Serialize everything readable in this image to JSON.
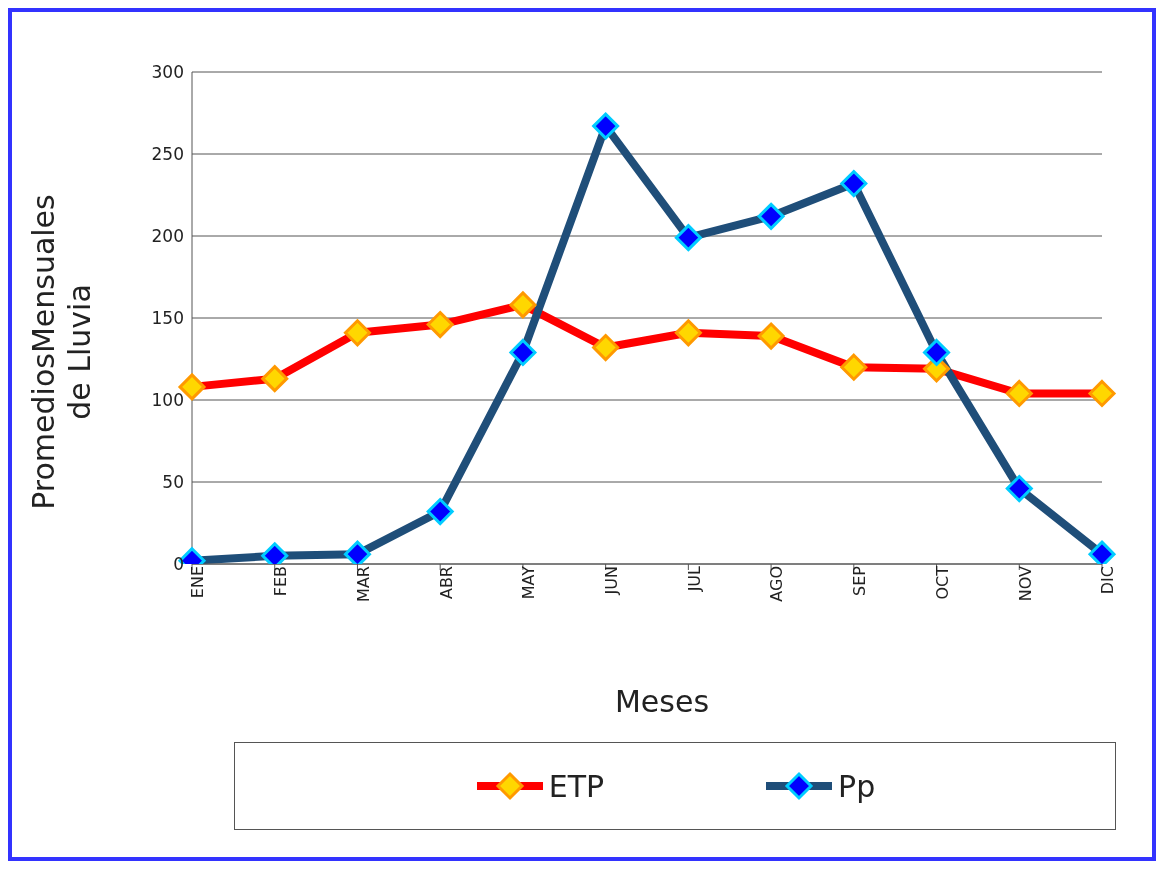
{
  "chart_data": {
    "type": "line",
    "xlabel": "Meses",
    "ylabel": "PromediosMensuales de Lluvia",
    "categories": [
      "ENE",
      "FEB",
      "MAR",
      "ABR",
      "MAY",
      "JUN",
      "JUL",
      "AGO",
      "SEP",
      "OCT",
      "NOV",
      "DIC"
    ],
    "series": [
      {
        "name": "ETP",
        "color": "#ff0000",
        "values": [
          108,
          113,
          141,
          146,
          158,
          132,
          141,
          139,
          120,
          119,
          104,
          104
        ]
      },
      {
        "name": "Pp",
        "color": "#1f4e79",
        "values": [
          2,
          5,
          6,
          32,
          129,
          267,
          199,
          212,
          232,
          129,
          46,
          6
        ]
      }
    ],
    "ylim": [
      0,
      300
    ],
    "yticks": [
      0,
      50,
      100,
      150,
      200,
      250,
      300
    ],
    "grid": "y",
    "legend": "bottom",
    "marker": "diamond",
    "line_style": "solid"
  }
}
